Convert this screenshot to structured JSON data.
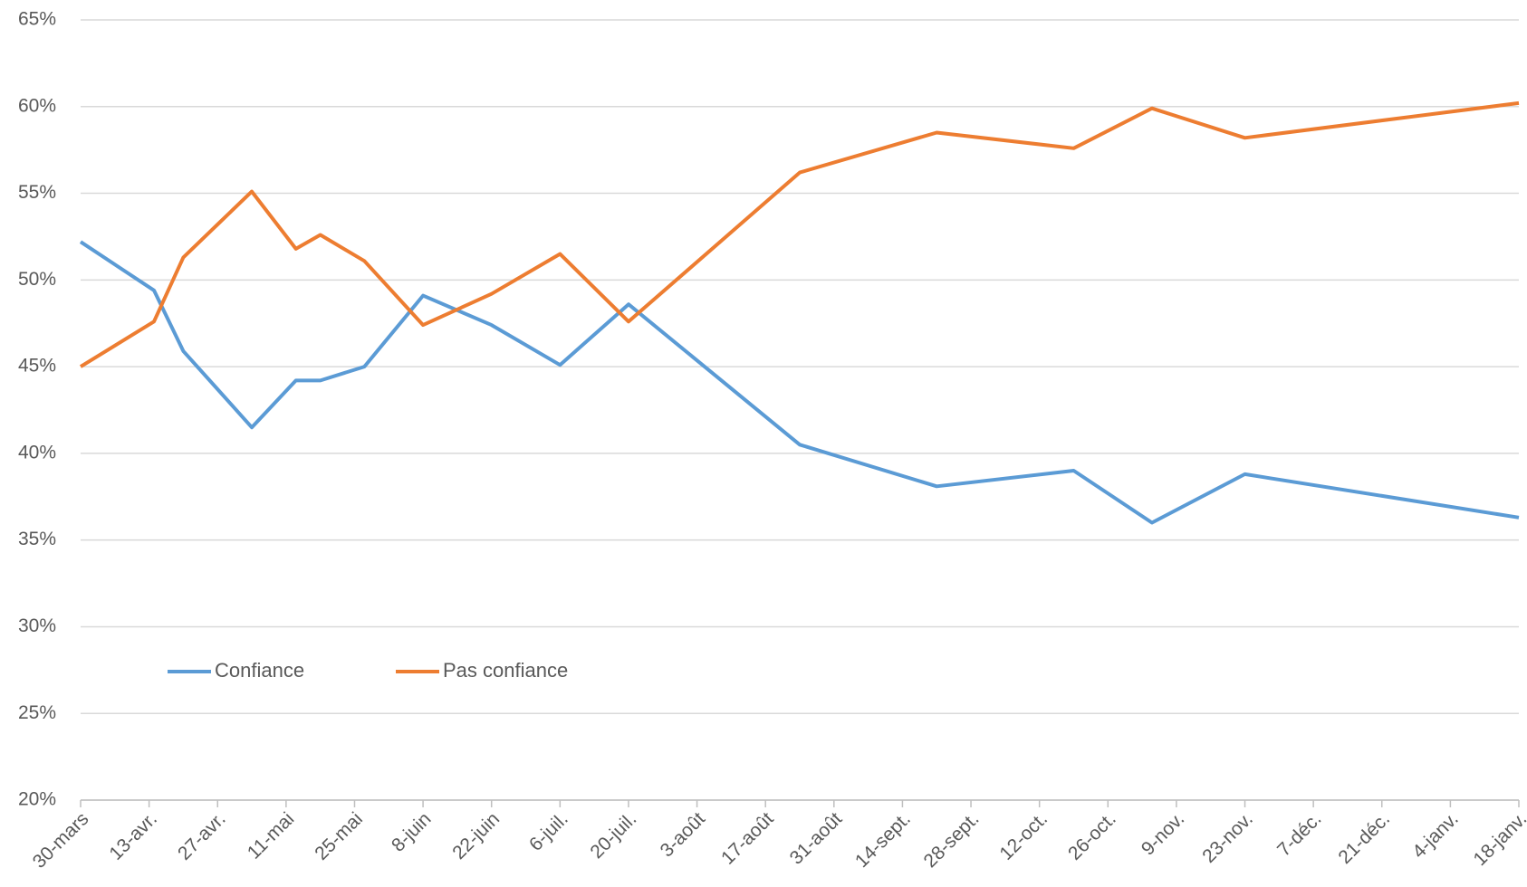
{
  "chart_data": {
    "type": "line",
    "x": [
      0,
      15,
      21,
      28,
      35,
      44,
      49,
      58,
      70,
      84,
      98,
      112,
      147,
      175,
      203,
      219,
      238,
      294
    ],
    "series": [
      {
        "name": "Confiance",
        "color": "#5b9bd5",
        "values": [
          52.2,
          49.4,
          45.9,
          43.7,
          41.5,
          44.2,
          44.2,
          45.0,
          49.1,
          47.4,
          45.1,
          48.6,
          40.5,
          38.1,
          39.0,
          36.0,
          38.8,
          36.3
        ]
      },
      {
        "name": "Pas confiance",
        "color": "#ed7d31",
        "values": [
          45.0,
          47.6,
          51.3,
          53.2,
          55.1,
          51.8,
          52.6,
          51.1,
          47.4,
          49.2,
          51.5,
          47.6,
          56.2,
          58.5,
          57.6,
          59.9,
          58.2,
          60.2
        ]
      }
    ],
    "xlim": [
      0,
      294
    ],
    "xticks": [
      {
        "value": 0,
        "label": "30-mars"
      },
      {
        "value": 14,
        "label": "13-avr."
      },
      {
        "value": 28,
        "label": "27-avr."
      },
      {
        "value": 42,
        "label": "11-mai"
      },
      {
        "value": 56,
        "label": "25-mai"
      },
      {
        "value": 70,
        "label": "8-juin"
      },
      {
        "value": 84,
        "label": "22-juin"
      },
      {
        "value": 98,
        "label": "6-juil."
      },
      {
        "value": 112,
        "label": "20-juil."
      },
      {
        "value": 126,
        "label": "3-août"
      },
      {
        "value": 140,
        "label": "17-août"
      },
      {
        "value": 154,
        "label": "31-août"
      },
      {
        "value": 168,
        "label": "14-sept."
      },
      {
        "value": 182,
        "label": "28-sept."
      },
      {
        "value": 196,
        "label": "12-oct."
      },
      {
        "value": 210,
        "label": "26-oct."
      },
      {
        "value": 224,
        "label": "9-nov."
      },
      {
        "value": 238,
        "label": "23-nov."
      },
      {
        "value": 252,
        "label": "7-déc."
      },
      {
        "value": 266,
        "label": "21-déc."
      },
      {
        "value": 280,
        "label": "4-janv."
      },
      {
        "value": 294,
        "label": "18-janv."
      }
    ],
    "ylim": [
      20,
      65
    ],
    "yticks": [
      {
        "value": 20,
        "label": "20%"
      },
      {
        "value": 25,
        "label": "25%"
      },
      {
        "value": 30,
        "label": "30%"
      },
      {
        "value": 35,
        "label": "35%"
      },
      {
        "value": 40,
        "label": "40%"
      },
      {
        "value": 45,
        "label": "45%"
      },
      {
        "value": 50,
        "label": "50%"
      },
      {
        "value": 55,
        "label": "55%"
      },
      {
        "value": 60,
        "label": "60%"
      },
      {
        "value": 65,
        "label": "65%"
      }
    ],
    "grid": true,
    "legend": "lower-left"
  }
}
